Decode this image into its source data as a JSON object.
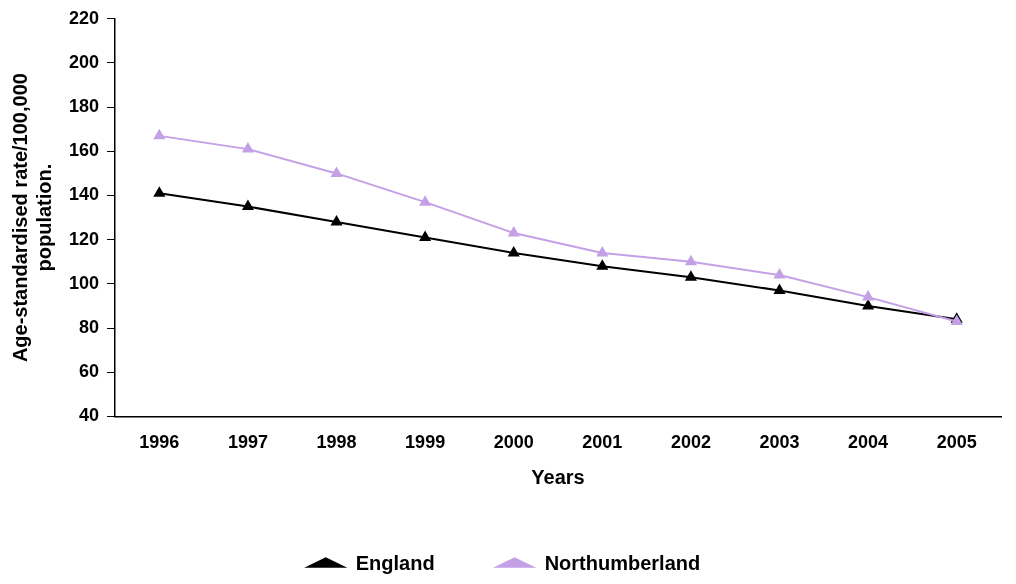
{
  "chart_data": {
    "type": "line",
    "xlabel": "Years",
    "ylabel": "Age-standardised rate/100,000 population.",
    "categories": [
      "1996",
      "1997",
      "1998",
      "1999",
      "2000",
      "2001",
      "2002",
      "2003",
      "2004",
      "2005"
    ],
    "series": [
      {
        "name": "England",
        "color": "#000000",
        "values": [
          141,
          135,
          128,
          121,
          114,
          108,
          103,
          97,
          90,
          84
        ]
      },
      {
        "name": "Northumberland",
        "color": "#c4a0e6",
        "values": [
          167,
          161,
          150,
          137,
          123,
          114,
          110,
          104,
          94,
          83
        ]
      }
    ],
    "ylim": [
      40,
      220
    ],
    "yticks": [
      40,
      60,
      80,
      100,
      120,
      140,
      160,
      180,
      200,
      220
    ],
    "grid": false,
    "legend": "bottom",
    "marker": "triangle",
    "line_style": "solid"
  }
}
